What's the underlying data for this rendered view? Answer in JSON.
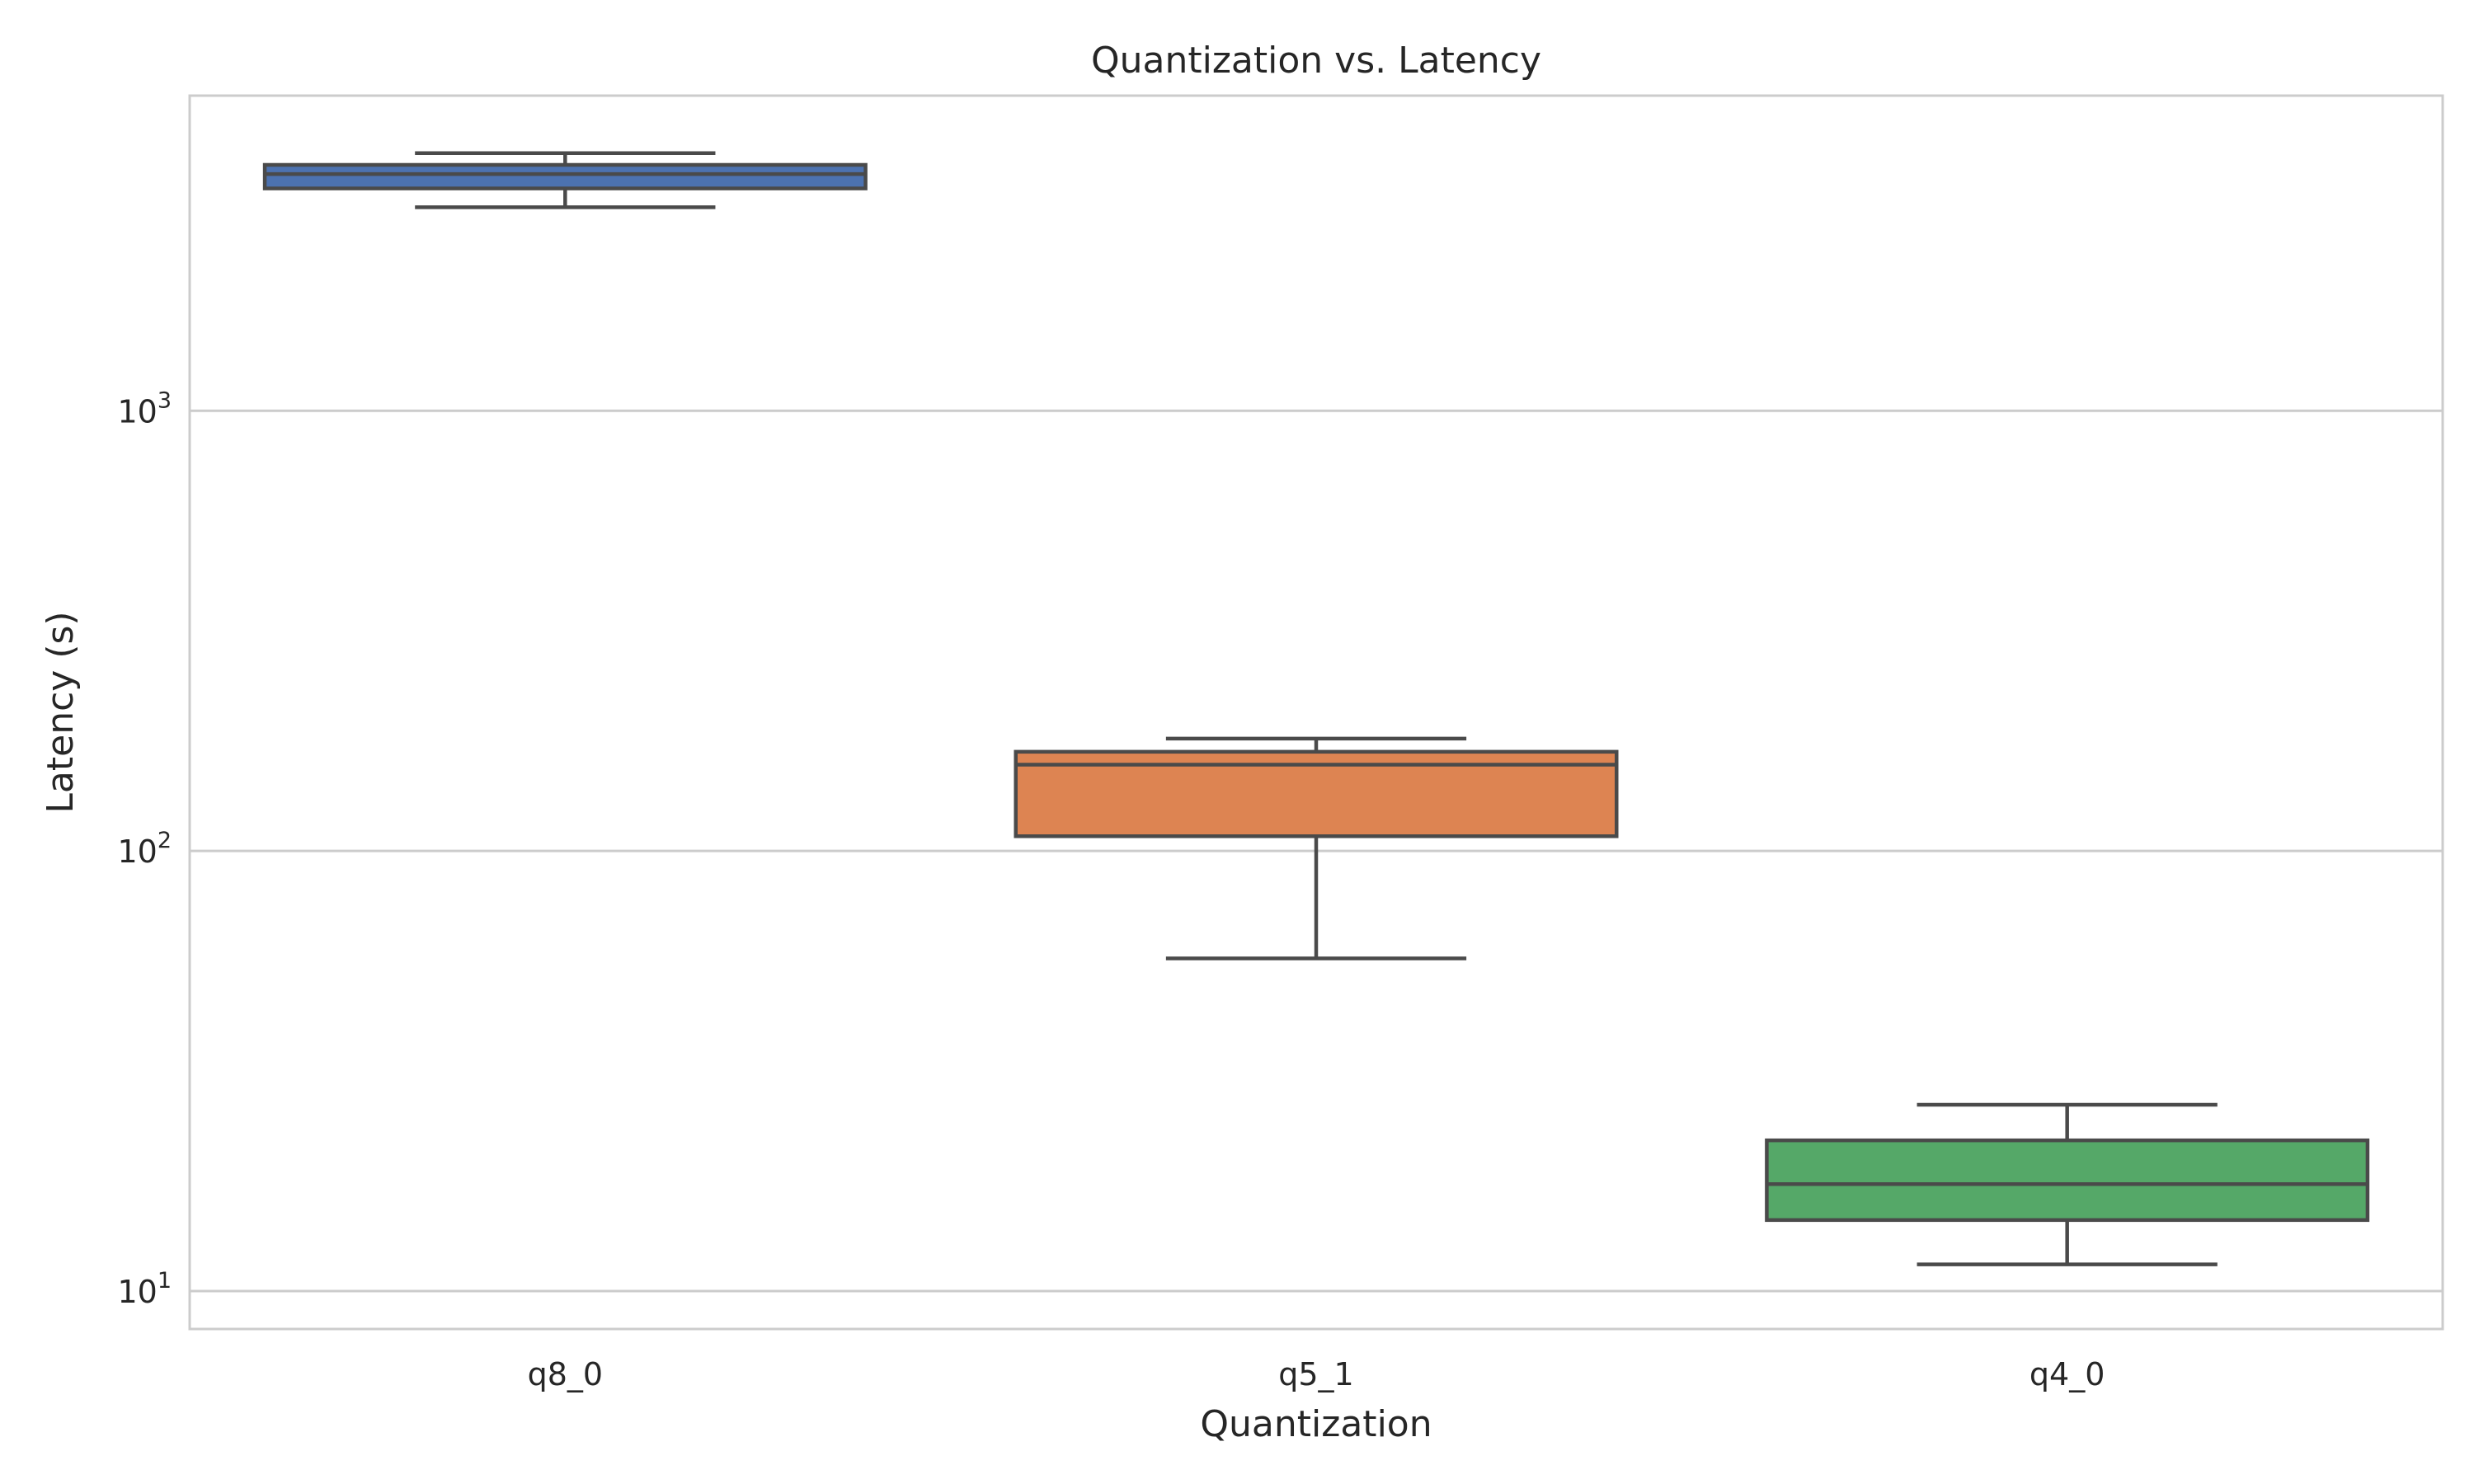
{
  "chart_data": {
    "type": "box",
    "title": "Quantization vs. Latency",
    "xlabel": "Quantization",
    "ylabel": "Latency (s)",
    "yscale": "log",
    "ylim": [
      8.2,
      5200
    ],
    "grid": "y",
    "categories": [
      "q8_0",
      "q5_1",
      "q4_0"
    ],
    "boxes": [
      {
        "category": "q8_0",
        "whisker_low": 2900,
        "q1": 3200,
        "median": 3450,
        "q3": 3620,
        "whisker_high": 3850,
        "color": "#4c72b0"
      },
      {
        "category": "q5_1",
        "whisker_low": 57,
        "q1": 108,
        "median": 157,
        "q3": 168,
        "whisker_high": 180,
        "color": "#dd8452"
      },
      {
        "category": "q4_0",
        "whisker_low": 11.5,
        "q1": 14.5,
        "median": 17.5,
        "q3": 22,
        "whisker_high": 26.5,
        "color": "#55a868"
      }
    ],
    "yticks": [
      {
        "value": 10,
        "base": "10",
        "exp": "1"
      },
      {
        "value": 100,
        "base": "10",
        "exp": "2"
      },
      {
        "value": 1000,
        "base": "10",
        "exp": "3"
      }
    ],
    "colors": {
      "grid": "#cccccc",
      "frame": "#cccccc",
      "box_edge": "#4a4a4a"
    }
  }
}
